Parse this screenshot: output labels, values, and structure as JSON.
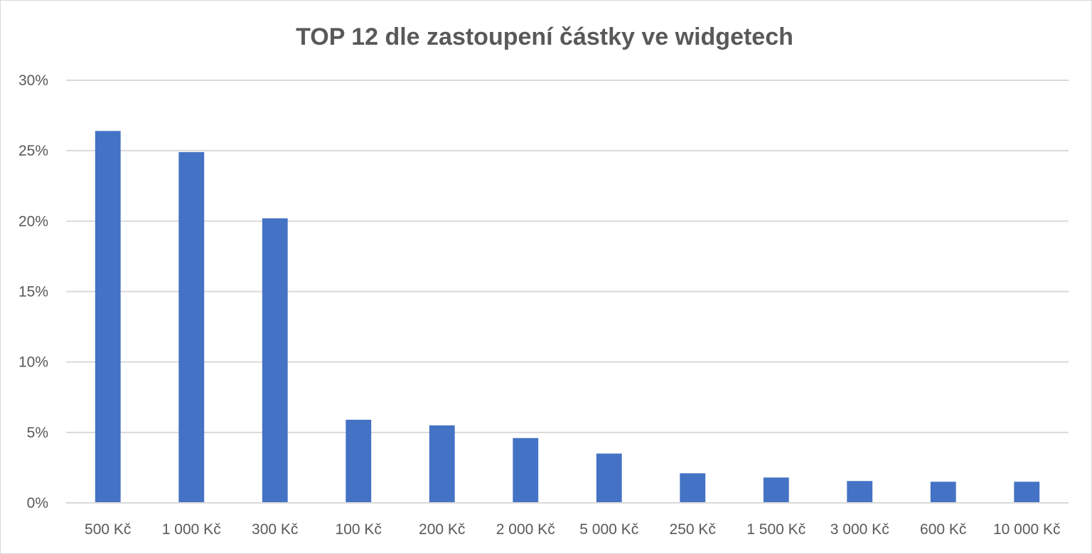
{
  "chart_data": {
    "type": "bar",
    "title": "TOP 12 dle zastoupení částky ve widgetech",
    "xlabel": "",
    "ylabel": "",
    "categories": [
      "500 Kč",
      "1 000 Kč",
      "300 Kč",
      "100 Kč",
      "200 Kč",
      "2 000 Kč",
      "5 000 Kč",
      "250 Kč",
      "1 500 Kč",
      "3 000 Kč",
      "600 Kč",
      "10 000 Kč"
    ],
    "values": [
      26.4,
      24.9,
      20.2,
      5.9,
      5.5,
      4.6,
      3.5,
      2.1,
      1.8,
      1.55,
      1.5,
      1.5
    ],
    "value_format": "percent",
    "ylim": [
      0,
      30
    ],
    "yticks": [
      0,
      5,
      10,
      15,
      20,
      25,
      30
    ],
    "ytick_labels": [
      "0%",
      "5%",
      "10%",
      "15%",
      "20%",
      "25%",
      "30%"
    ],
    "grid": true,
    "legend": "none",
    "bar_color": "#4472C4",
    "grid_color": "#d9d9d9",
    "text_color": "#595959"
  }
}
